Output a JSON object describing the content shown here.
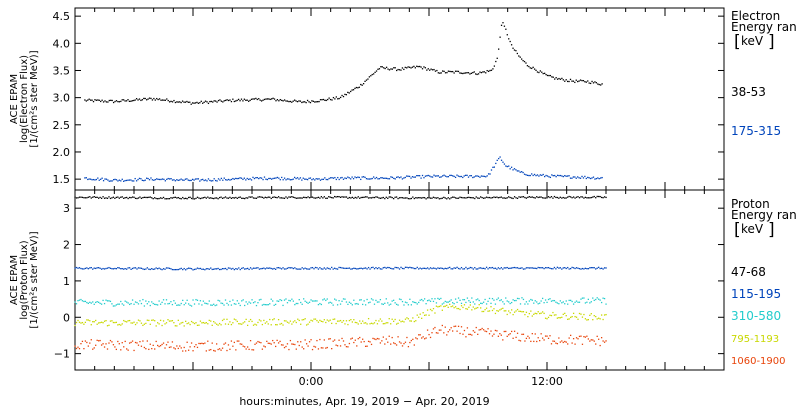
{
  "chart_data": [
    {
      "type": "scatter",
      "panel": "electron",
      "ylabel_lines": [
        "ACE EPAM",
        "log(Electron Flux)",
        "[1/(cm²s ster MeV)]"
      ],
      "ylim": [
        1.3,
        4.65
      ],
      "yticks": [
        1.5,
        2.0,
        2.5,
        3.0,
        3.5,
        4.0,
        4.5
      ],
      "ytick_labels": [
        "1.5",
        "2.0",
        "2.5",
        "3.0",
        "3.5",
        "4.0",
        "4.5"
      ],
      "legend_title": [
        "Electron",
        "Energy ran"
      ],
      "legend_unit": "keV",
      "series": [
        {
          "name": "38-53",
          "color": "#000000",
          "x": [
            -11.5,
            -10,
            -8,
            -6,
            -4,
            -2,
            -0.5,
            0.5,
            1.5,
            2.5,
            3.5,
            4.5,
            5.5,
            6.5,
            7.5,
            8.5,
            9.2,
            9.5,
            9.7,
            9.9,
            10.2,
            10.6,
            11.0,
            11.5,
            12.0,
            12.5,
            13.0,
            13.5,
            14.0,
            14.8
          ],
          "y": [
            2.95,
            2.93,
            2.98,
            2.9,
            2.95,
            2.97,
            2.92,
            2.95,
            3.0,
            3.22,
            3.55,
            3.52,
            3.57,
            3.47,
            3.47,
            3.45,
            3.5,
            3.75,
            4.4,
            4.25,
            3.95,
            3.75,
            3.6,
            3.5,
            3.4,
            3.35,
            3.32,
            3.3,
            3.3,
            3.25
          ]
        },
        {
          "name": "175-315",
          "color": "#0044bb",
          "x": [
            -11.5,
            -10,
            -8,
            -6,
            -4,
            -2,
            0,
            2,
            4,
            6,
            8,
            9,
            9.6,
            9.9,
            10.3,
            10.8,
            11.5,
            12.5,
            13.5,
            14.8
          ],
          "y": [
            1.52,
            1.48,
            1.5,
            1.48,
            1.5,
            1.52,
            1.5,
            1.52,
            1.52,
            1.55,
            1.55,
            1.56,
            1.9,
            1.75,
            1.68,
            1.6,
            1.57,
            1.55,
            1.54,
            1.52
          ]
        }
      ]
    },
    {
      "type": "scatter",
      "panel": "proton",
      "ylabel_lines": [
        "ACE EPAM",
        "log(Proton Flux)",
        "[1/(cm²s ster MeV)]"
      ],
      "ylim": [
        -1.45,
        3.5
      ],
      "yticks": [
        -1,
        0,
        1,
        2,
        3
      ],
      "ytick_labels": [
        "−1",
        "0",
        "1",
        "2",
        "3"
      ],
      "xlabel": "hours:minutes, Apr. 19, 2019 − Apr. 20, 2019",
      "xlim": [
        -12,
        21
      ],
      "xticks": [
        0,
        12
      ],
      "xtick_labels": [
        "0:00",
        "12:00"
      ],
      "legend_title": [
        "Proton",
        "Energy ran"
      ],
      "legend_unit": "keV",
      "series": [
        {
          "name": "47-68",
          "color": "#000000",
          "x": [
            -12,
            -6,
            0,
            6,
            12,
            15
          ],
          "y": [
            3.3,
            3.28,
            3.3,
            3.28,
            3.3,
            3.3
          ]
        },
        {
          "name": "115-195",
          "color": "#0044bb",
          "x": [
            -12,
            -6,
            0,
            6,
            12,
            15
          ],
          "y": [
            1.35,
            1.33,
            1.35,
            1.35,
            1.35,
            1.35
          ]
        },
        {
          "name": "310-580",
          "color": "#22cccc",
          "x": [
            -12,
            -6,
            0,
            6,
            8,
            10,
            12,
            15
          ],
          "y": [
            0.4,
            0.4,
            0.42,
            0.43,
            0.45,
            0.45,
            0.45,
            0.45
          ]
        },
        {
          "name": "795-1193",
          "color": "#c8d800",
          "x": [
            -12,
            -6,
            0,
            5,
            6.5,
            8,
            10,
            12,
            15
          ],
          "y": [
            -0.15,
            -0.15,
            -0.12,
            -0.1,
            0.25,
            0.3,
            0.15,
            0.05,
            0.0
          ]
        },
        {
          "name": "1060-1900",
          "color": "#e8440a",
          "x": [
            -12,
            -6,
            0,
            4,
            5,
            6.5,
            8,
            10,
            12,
            15
          ],
          "y": [
            -0.75,
            -0.8,
            -0.75,
            -0.65,
            -0.7,
            -0.35,
            -0.4,
            -0.5,
            -0.6,
            -0.65
          ]
        }
      ]
    }
  ]
}
